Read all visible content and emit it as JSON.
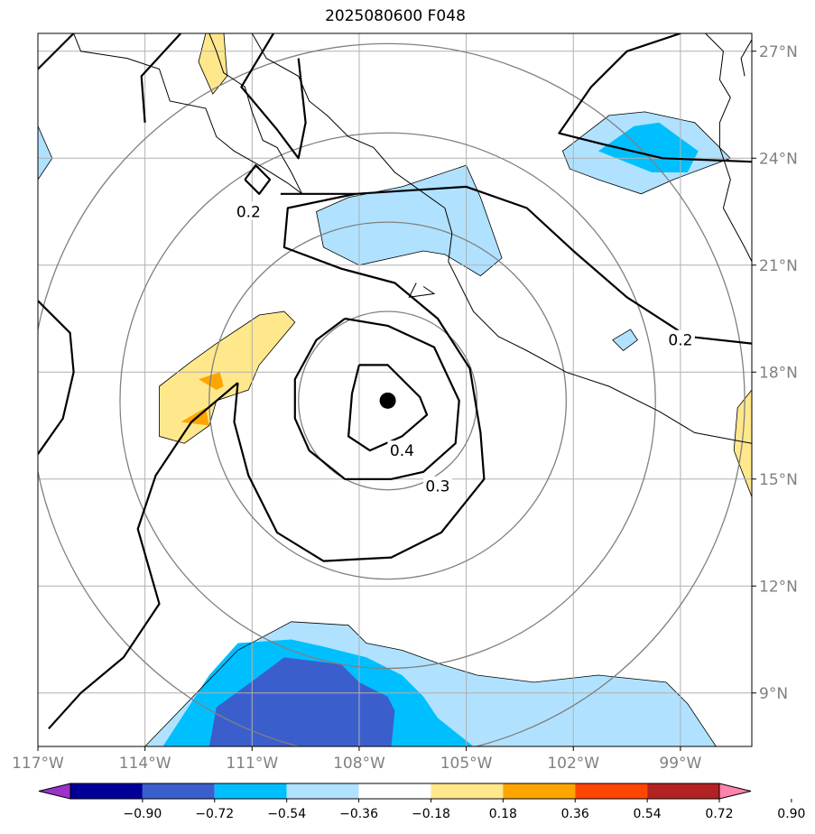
{
  "chart_data": {
    "type": "heatmap",
    "title": "2025080600 F048",
    "projection": "lat-lon map, lon -117 to -97, lat 7.5 to 27.5",
    "xlim": [
      -117,
      -97
    ],
    "ylim": [
      7.5,
      27.5
    ],
    "x_ticks": [
      {
        "lon": -117,
        "label": "117°W"
      },
      {
        "lon": -114,
        "label": "114°W"
      },
      {
        "lon": -111,
        "label": "111°W"
      },
      {
        "lon": -108,
        "label": "108°W"
      },
      {
        "lon": -105,
        "label": "105°W"
      },
      {
        "lon": -102,
        "label": "102°W"
      },
      {
        "lon": -99,
        "label": "99°W"
      }
    ],
    "y_ticks": [
      {
        "lat": 27,
        "label": "27°N"
      },
      {
        "lat": 24,
        "label": "24°N"
      },
      {
        "lat": 21,
        "label": "21°N"
      },
      {
        "lat": 18,
        "label": "18°N"
      },
      {
        "lat": 15,
        "label": "15°N"
      },
      {
        "lat": 12,
        "label": "12°N"
      },
      {
        "lat": 9,
        "label": "9°N"
      }
    ],
    "grid": true,
    "colorbar": {
      "location": "bottom",
      "extend": "both",
      "levels": [
        -0.9,
        -0.72,
        -0.54,
        -0.36,
        -0.18,
        0.18,
        0.36,
        0.54,
        0.72,
        0.9
      ],
      "tick_labels": [
        "−0.90",
        "−0.72",
        "−0.54",
        "−0.36",
        "−0.18",
        "0.18",
        "0.36",
        "0.54",
        "0.72",
        "0.90"
      ],
      "colors": [
        "#9933cc",
        "#000099",
        "#3a5fcd",
        "#00bfff",
        "#b0e2ff",
        "#ffffff",
        "#ffe88c",
        "#ffa500",
        "#ff4500",
        "#b22222",
        "#ff82ab"
      ]
    },
    "center_marker": {
      "lon": -107.2,
      "lat": 17.2
    },
    "range_rings_deg": [
      2.5,
      5,
      7.5,
      10
    ],
    "contours": [
      {
        "level": "0.4",
        "points": [
          [
            -108.0,
            18.2
          ],
          [
            -107.2,
            18.2
          ],
          [
            -106.3,
            17.3
          ],
          [
            -106.1,
            16.8
          ],
          [
            -106.8,
            16.2
          ],
          [
            -107.7,
            15.8
          ],
          [
            -108.3,
            16.2
          ],
          [
            -108.2,
            17.4
          ],
          [
            -108.0,
            18.2
          ]
        ]
      },
      {
        "level": "0.3",
        "points": [
          [
            -108.4,
            19.5
          ],
          [
            -107.2,
            19.3
          ],
          [
            -105.9,
            18.7
          ],
          [
            -105.2,
            17.2
          ],
          [
            -105.3,
            16.0
          ],
          [
            -106.2,
            15.2
          ],
          [
            -107.1,
            15.0
          ],
          [
            -108.4,
            15.0
          ],
          [
            -109.4,
            15.8
          ],
          [
            -109.8,
            16.7
          ],
          [
            -109.8,
            17.8
          ],
          [
            -109.2,
            18.9
          ],
          [
            -108.4,
            19.5
          ]
        ]
      },
      {
        "level": "0.2",
        "points": [
          [
            -110.2,
            23.0
          ],
          [
            -108.1,
            23.0
          ],
          [
            -105.0,
            23.2
          ],
          [
            -103.3,
            22.6
          ],
          [
            -102.0,
            21.4
          ],
          [
            -100.5,
            20.1
          ],
          [
            -98.8,
            19.0
          ],
          [
            -97.0,
            18.8
          ]
        ]
      },
      {
        "level": "0.2",
        "points": [
          [
            -108.1,
            23.0
          ],
          [
            -110.0,
            22.6
          ],
          [
            -110.1,
            21.5
          ],
          [
            -108.5,
            20.9
          ],
          [
            -107.0,
            20.5
          ],
          [
            -105.8,
            19.5
          ],
          [
            -104.9,
            18.1
          ],
          [
            -104.6,
            16.3
          ],
          [
            -104.5,
            15.0
          ],
          [
            -105.7,
            13.5
          ],
          [
            -107.1,
            12.8
          ],
          [
            -109.0,
            12.7
          ],
          [
            -110.3,
            13.5
          ],
          [
            -111.1,
            15.1
          ],
          [
            -111.5,
            16.6
          ],
          [
            -111.4,
            17.7
          ]
        ]
      },
      {
        "level": "0.2",
        "points": [
          [
            -111.2,
            23.4
          ],
          [
            -110.8,
            23.0
          ],
          [
            -110.5,
            23.4
          ],
          [
            -110.9,
            23.8
          ],
          [
            -111.2,
            23.4
          ]
        ]
      },
      {
        "level": "0.2",
        "points": [
          [
            -99.0,
            27.5
          ],
          [
            -100.5,
            27.0
          ],
          [
            -101.5,
            26.0
          ],
          [
            -102.4,
            24.7
          ],
          [
            -101.2,
            24.4
          ],
          [
            -99.5,
            24.0
          ],
          [
            -97.0,
            23.9
          ]
        ]
      },
      {
        "level": "0.2",
        "points": [
          [
            -116.0,
            27.5
          ],
          [
            -117.0,
            26.5
          ]
        ]
      },
      {
        "level": "0.2",
        "points": [
          [
            -113.0,
            27.5
          ],
          [
            -114.1,
            26.3
          ],
          [
            -114.0,
            25.0
          ]
        ]
      },
      {
        "level": "0.2",
        "points": [
          [
            -110.4,
            27.5
          ],
          [
            -111.3,
            26.0
          ],
          [
            -110.3,
            24.8
          ],
          [
            -109.7,
            24.0
          ],
          [
            -109.5,
            25.0
          ],
          [
            -109.7,
            26.8
          ]
        ]
      },
      {
        "level": "0.2",
        "points": [
          [
            -117.0,
            20.0
          ],
          [
            -116.1,
            19.1
          ],
          [
            -116.0,
            18.0
          ],
          [
            -116.3,
            16.7
          ],
          [
            -117.0,
            15.7
          ]
        ]
      },
      {
        "level": "0.2",
        "points": [
          [
            -111.4,
            17.7
          ],
          [
            -112.7,
            16.6
          ],
          [
            -113.7,
            15.1
          ],
          [
            -114.2,
            13.6
          ],
          [
            -113.6,
            11.5
          ],
          [
            -114.6,
            10.0
          ],
          [
            -115.8,
            9.0
          ],
          [
            -116.7,
            8.0
          ]
        ]
      }
    ],
    "contour_labels": [
      {
        "text": "0.4",
        "lon": -106.8,
        "lat": 15.8
      },
      {
        "text": "0.3",
        "lon": -105.8,
        "lon_unused": 0,
        "lat": 14.8
      },
      {
        "text": "0.2",
        "lon": -111.1,
        "lat": 22.5
      },
      {
        "text": "0.2",
        "lon": -99.0,
        "lat": 18.9
      }
    ],
    "filled_regions": [
      {
        "level_range": [
          -0.36,
          -0.18
        ],
        "points": [
          [
            -114.0,
            7.5
          ],
          [
            -111.4,
            10.2
          ],
          [
            -109.9,
            11.0
          ],
          [
            -108.3,
            10.9
          ],
          [
            -107.8,
            10.4
          ],
          [
            -106.8,
            10.2
          ],
          [
            -105.7,
            9.8
          ],
          [
            -104.7,
            9.5
          ],
          [
            -103.1,
            9.3
          ],
          [
            -101.3,
            9.5
          ],
          [
            -99.4,
            9.3
          ],
          [
            -98.8,
            8.7
          ],
          [
            -98.0,
            7.5
          ]
        ]
      },
      {
        "level_range": [
          -0.54,
          -0.36
        ],
        "points": [
          [
            -113.5,
            7.5
          ],
          [
            -112.2,
            9.5
          ],
          [
            -111.4,
            10.4
          ],
          [
            -109.9,
            10.5
          ],
          [
            -109.0,
            10.3
          ],
          [
            -107.8,
            10.0
          ],
          [
            -106.8,
            9.5
          ],
          [
            -106.2,
            8.9
          ],
          [
            -105.8,
            8.3
          ],
          [
            -104.8,
            7.5
          ]
        ]
      },
      {
        "level_range": [
          -0.72,
          -0.54
        ],
        "points": [
          [
            -112.2,
            7.5
          ],
          [
            -112.0,
            8.6
          ],
          [
            -110.9,
            9.4
          ],
          [
            -110.1,
            10.0
          ],
          [
            -108.5,
            9.8
          ],
          [
            -108.0,
            9.3
          ],
          [
            -107.2,
            8.9
          ],
          [
            -107.0,
            8.5
          ],
          [
            -107.1,
            7.5
          ]
        ]
      },
      {
        "level_range": [
          -0.36,
          -0.18
        ],
        "points": [
          [
            -101.0,
            25.2
          ],
          [
            -100.0,
            25.3
          ],
          [
            -98.6,
            25.0
          ],
          [
            -97.6,
            24.0
          ],
          [
            -99.2,
            23.4
          ],
          [
            -100.1,
            23.0
          ],
          [
            -101.3,
            23.4
          ],
          [
            -102.1,
            23.7
          ],
          [
            -102.3,
            24.2
          ],
          [
            -101.0,
            25.2
          ]
        ]
      },
      {
        "level_range": [
          -0.54,
          -0.36
        ],
        "points": [
          [
            -100.3,
            24.9
          ],
          [
            -99.6,
            25.0
          ],
          [
            -98.5,
            24.2
          ],
          [
            -98.8,
            23.6
          ],
          [
            -99.8,
            23.6
          ],
          [
            -101.3,
            24.2
          ],
          [
            -100.3,
            24.9
          ]
        ]
      },
      {
        "level_range": [
          -0.36,
          -0.18
        ],
        "points": [
          [
            -109.2,
            22.5
          ],
          [
            -108.3,
            22.9
          ],
          [
            -106.8,
            23.2
          ],
          [
            -105.0,
            23.8
          ],
          [
            -104.6,
            22.9
          ],
          [
            -104.0,
            21.2
          ],
          [
            -104.6,
            20.7
          ],
          [
            -105.6,
            21.3
          ],
          [
            -106.2,
            21.4
          ],
          [
            -108.0,
            21.0
          ],
          [
            -109.0,
            21.5
          ],
          [
            -109.2,
            22.5
          ]
        ]
      },
      {
        "level_range": [
          -0.36,
          -0.18
        ],
        "points": [
          [
            -100.9,
            18.9
          ],
          [
            -100.4,
            19.2
          ],
          [
            -100.2,
            18.9
          ],
          [
            -100.6,
            18.6
          ]
        ]
      },
      {
        "level_range": [
          -0.36,
          -0.18
        ],
        "points": [
          [
            -117.0,
            24.9
          ],
          [
            -116.6,
            24.0
          ],
          [
            -117.0,
            23.4
          ]
        ]
      },
      {
        "level_range": [
          0.18,
          0.36
        ],
        "points": [
          [
            -113.6,
            17.6
          ],
          [
            -112.7,
            18.3
          ],
          [
            -112.0,
            18.8
          ],
          [
            -111.1,
            19.4
          ],
          [
            -110.8,
            19.6
          ],
          [
            -110.1,
            19.7
          ],
          [
            -109.8,
            19.4
          ],
          [
            -110.8,
            18.2
          ],
          [
            -111.1,
            17.5
          ],
          [
            -112.0,
            17.2
          ],
          [
            -112.2,
            16.5
          ],
          [
            -112.9,
            16.0
          ],
          [
            -113.6,
            16.2
          ],
          [
            -113.6,
            17.6
          ]
        ]
      },
      {
        "level_range": [
          0.36,
          0.54
        ],
        "points": [
          [
            -112.5,
            17.8
          ],
          [
            -111.9,
            18.0
          ],
          [
            -111.8,
            17.6
          ],
          [
            -112.0,
            17.5
          ]
        ]
      },
      {
        "level_range": [
          0.36,
          0.54
        ],
        "points": [
          [
            -113.0,
            16.6
          ],
          [
            -112.3,
            17.0
          ],
          [
            -112.2,
            16.5
          ]
        ]
      },
      {
        "level_range": [
          0.18,
          0.36
        ],
        "points": [
          [
            -112.3,
            27.5
          ],
          [
            -111.8,
            27.6
          ],
          [
            -111.7,
            26.3
          ],
          [
            -112.1,
            25.8
          ],
          [
            -112.5,
            26.7
          ]
        ]
      },
      {
        "level_range": [
          0.18,
          0.36
        ],
        "points": [
          [
            -97.0,
            17.5
          ],
          [
            -97.4,
            17.0
          ],
          [
            -97.5,
            15.8
          ],
          [
            -97.0,
            14.5
          ]
        ]
      }
    ],
    "coastlines": [
      [
        [
          -116.0,
          27.5
        ],
        [
          -115.8,
          27.0
        ],
        [
          -114.5,
          26.8
        ],
        [
          -113.6,
          26.5
        ],
        [
          -113.3,
          25.6
        ],
        [
          -112.3,
          25.4
        ],
        [
          -112.0,
          24.6
        ],
        [
          -111.5,
          24.2
        ],
        [
          -110.8,
          23.8
        ],
        [
          -110.0,
          23.3
        ],
        [
          -109.6,
          23.0
        ],
        [
          -109.9,
          23.6
        ],
        [
          -110.3,
          24.3
        ],
        [
          -110.7,
          24.5
        ],
        [
          -111.0,
          25.3
        ],
        [
          -111.2,
          26.0
        ],
        [
          -111.8,
          26.4
        ],
        [
          -112.0,
          27.0
        ],
        [
          -112.2,
          27.5
        ]
      ],
      [
        [
          -111.0,
          27.5
        ],
        [
          -110.6,
          26.8
        ],
        [
          -109.7,
          26.3
        ],
        [
          -109.4,
          25.6
        ],
        [
          -108.9,
          25.2
        ],
        [
          -108.3,
          24.6
        ],
        [
          -107.6,
          24.3
        ],
        [
          -107.0,
          23.6
        ],
        [
          -106.3,
          23.1
        ],
        [
          -105.6,
          22.6
        ],
        [
          -105.4,
          21.9
        ],
        [
          -105.5,
          21.1
        ],
        [
          -105.2,
          20.5
        ],
        [
          -104.8,
          19.7
        ],
        [
          -104.1,
          19.0
        ],
        [
          -103.3,
          18.6
        ],
        [
          -102.2,
          18.0
        ],
        [
          -101.0,
          17.6
        ],
        [
          -99.6,
          16.9
        ],
        [
          -98.6,
          16.3
        ],
        [
          -97.0,
          16.0
        ]
      ],
      [
        [
          -98.3,
          27.5
        ],
        [
          -97.8,
          27.0
        ],
        [
          -97.9,
          26.2
        ],
        [
          -97.6,
          25.7
        ],
        [
          -97.9,
          25.0
        ],
        [
          -97.9,
          24.3
        ],
        [
          -97.6,
          23.4
        ],
        [
          -97.8,
          22.6
        ],
        [
          -97.2,
          21.5
        ],
        [
          -97.0,
          21.1
        ]
      ],
      [
        [
          -96.9,
          27.5
        ],
        [
          -97.3,
          26.8
        ],
        [
          -97.2,
          26.3
        ]
      ],
      [
        [
          -106.2,
          20.4
        ],
        [
          -105.9,
          20.2
        ],
        [
          -106.6,
          20.1
        ],
        [
          -106.4,
          20.5
        ]
      ]
    ]
  }
}
